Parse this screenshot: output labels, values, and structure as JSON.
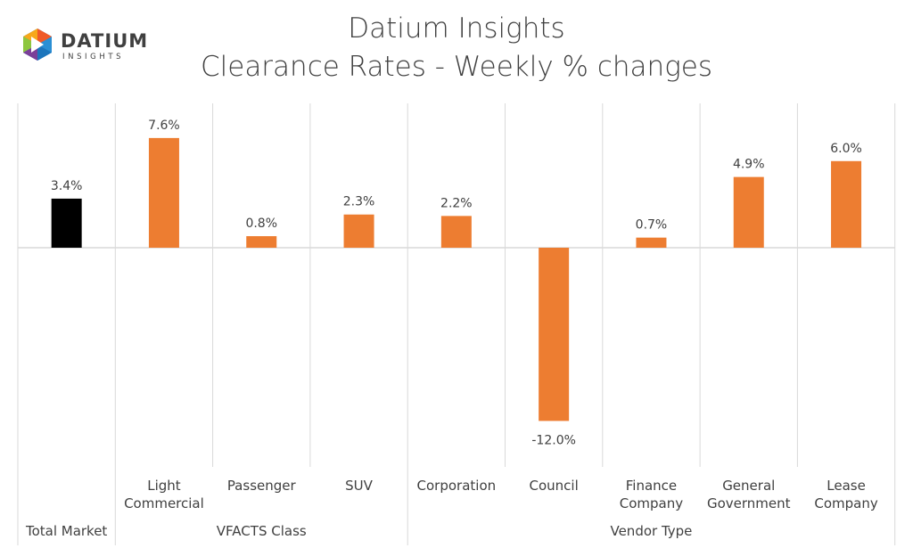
{
  "brand": {
    "name": "DATIUM",
    "tagline": "INSIGHTS"
  },
  "header": {
    "title_line1": "Datium Insights",
    "title_line2": "Clearance Rates - Weekly % changes"
  },
  "colors": {
    "total_bar": "#000000",
    "bar": "#ED7D31",
    "grid": "#D9D9D9",
    "text": "#404040"
  },
  "chart_data": {
    "type": "bar",
    "categories": [
      "Total Market",
      "Light Commercial",
      "Passenger",
      "SUV",
      "Corporation",
      "Council",
      "Finance Company",
      "General Government",
      "Lease Company"
    ],
    "category_lines": [
      [
        "Total Market"
      ],
      [
        "Light",
        "Commercial"
      ],
      [
        "Passenger"
      ],
      [
        "SUV"
      ],
      [
        "Corporation"
      ],
      [
        "Council"
      ],
      [
        "Finance",
        "Company"
      ],
      [
        "General",
        "Government"
      ],
      [
        "Lease",
        "Company"
      ]
    ],
    "values": [
      3.4,
      7.6,
      0.8,
      2.3,
      2.2,
      -12.0,
      0.7,
      4.9,
      6.0
    ],
    "data_labels": [
      "3.4%",
      "7.6%",
      "0.8%",
      "2.3%",
      "2.2%",
      "-12.0%",
      "0.7%",
      "4.9%",
      "6.0%"
    ],
    "groups": [
      {
        "label": "",
        "start": 0,
        "end": 0
      },
      {
        "label": "VFACTS Class",
        "start": 1,
        "end": 3
      },
      {
        "label": "Vendor Type",
        "start": 4,
        "end": 8
      }
    ],
    "title": "Clearance Rates - Weekly % changes",
    "ylim": [
      -13,
      10
    ],
    "grid": true,
    "legend": "none"
  }
}
